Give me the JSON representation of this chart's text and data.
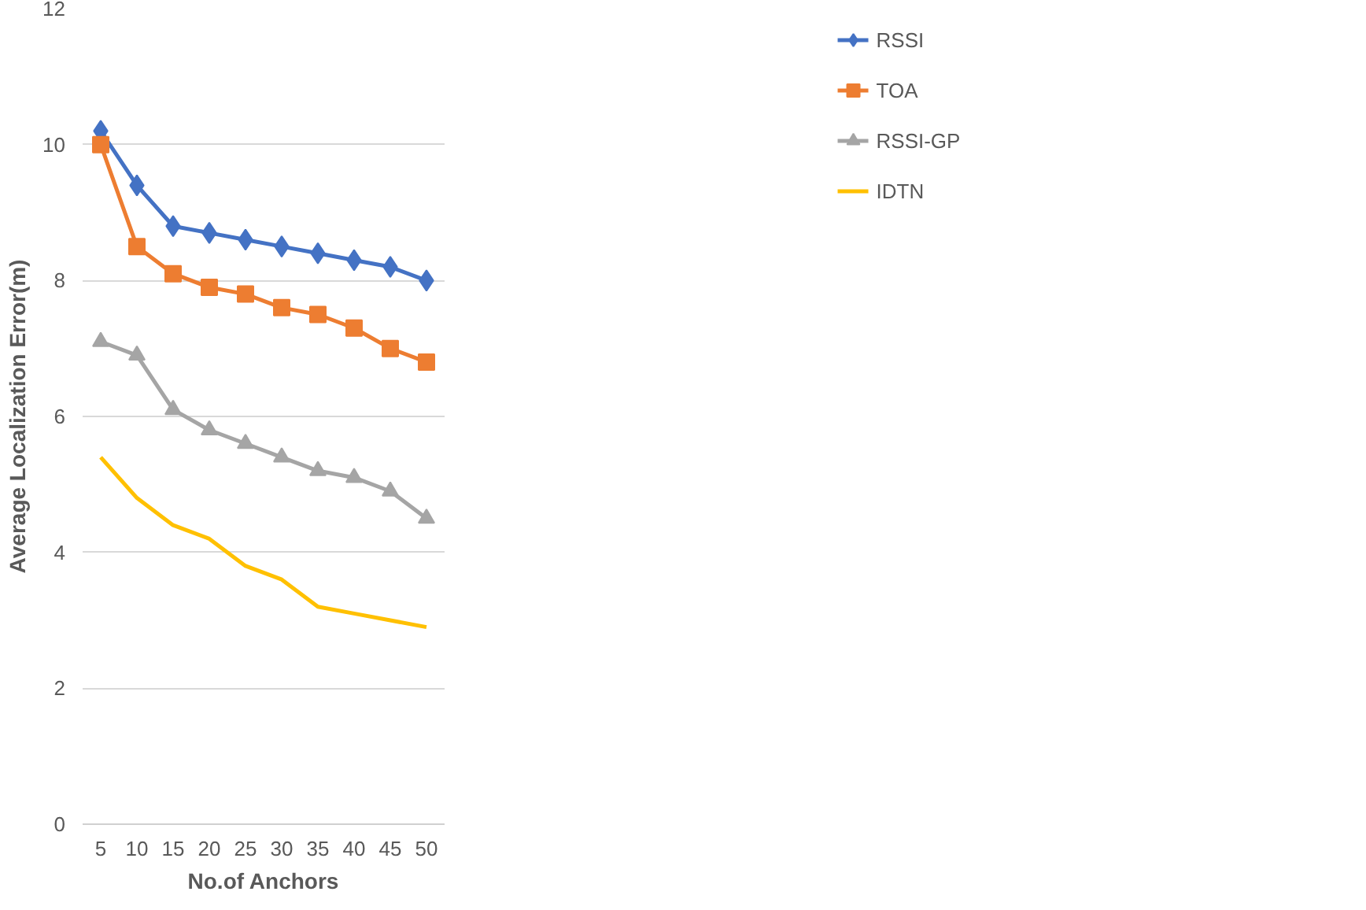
{
  "chart_data": {
    "type": "line",
    "xlabel": "No.of Anchors",
    "ylabel": "Average Localization Error(m)",
    "categories": [
      "5",
      "10",
      "15",
      "20",
      "25",
      "30",
      "35",
      "40",
      "45",
      "50"
    ],
    "series": [
      {
        "name": "RSSI",
        "color": "#4472c4",
        "marker": "diamond",
        "values": [
          10.2,
          9.4,
          8.8,
          8.7,
          8.6,
          8.5,
          8.4,
          8.3,
          8.2,
          8.0
        ]
      },
      {
        "name": "TOA",
        "color": "#ed7d31",
        "marker": "square",
        "values": [
          10.0,
          8.5,
          8.1,
          7.9,
          7.8,
          7.6,
          7.5,
          7.3,
          7.0,
          6.8
        ]
      },
      {
        "name": "RSSI-GP",
        "color": "#a5a5a5",
        "marker": "triangle",
        "values": [
          7.1,
          6.9,
          6.1,
          5.8,
          5.6,
          5.4,
          5.2,
          5.1,
          4.9,
          4.5
        ]
      },
      {
        "name": "IDTN",
        "color": "#ffc000",
        "marker": "none",
        "values": [
          5.4,
          4.8,
          4.4,
          4.2,
          3.8,
          3.6,
          3.2,
          3.1,
          3.0,
          2.9
        ]
      }
    ],
    "ylim": [
      0,
      12
    ],
    "yticks": [
      0,
      2,
      4,
      6,
      8,
      10,
      12
    ],
    "grid": "y",
    "legend": "right"
  }
}
